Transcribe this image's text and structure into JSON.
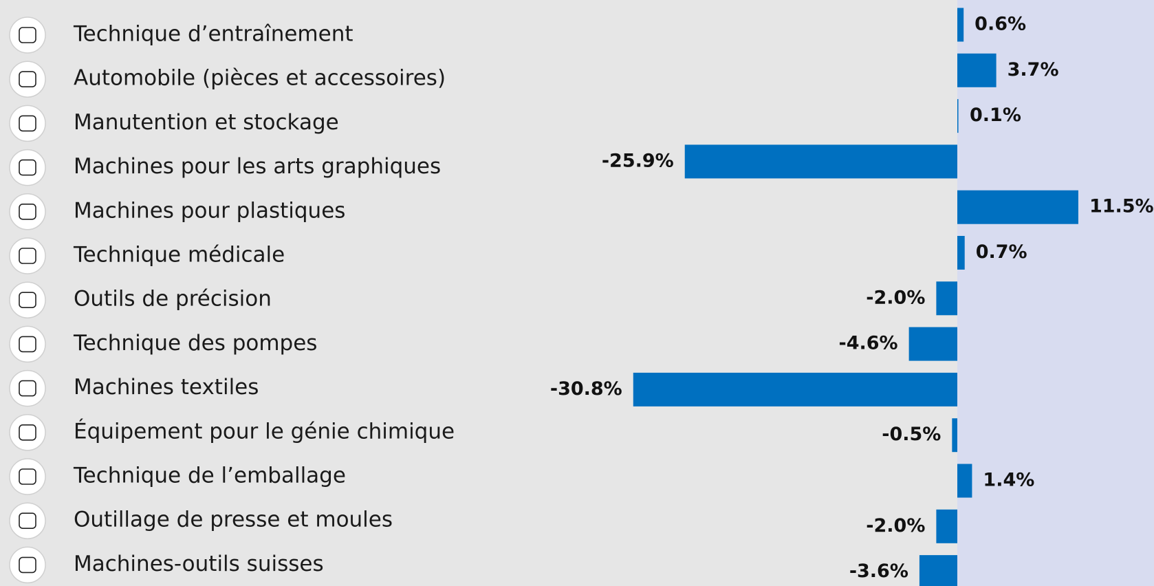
{
  "chart_data": {
    "type": "bar",
    "orientation": "horizontal",
    "color": "#0070c0",
    "categories": [
      "Technique d’entraînement",
      "Automobile (pièces et accessoires)",
      "Manutention et stockage",
      "Machines pour les arts graphiques",
      "Machines pour plastiques",
      "Technique médicale",
      "Outils de précision",
      "Technique des pompes",
      "Machines textiles",
      "Équipement pour le génie chimique",
      "Technique de l’emballage",
      "Outillage de presse et moules",
      "Machines-outils suisses"
    ],
    "values": [
      0.6,
      3.7,
      0.1,
      -25.9,
      11.5,
      0.7,
      -2.0,
      -4.6,
      -30.8,
      -0.5,
      1.4,
      -2.0,
      -3.6
    ],
    "value_labels": [
      "0.6%",
      "3.7%",
      "0.1%",
      "-25.9%",
      "11.5%",
      "0.7%",
      "-2.0%",
      "-4.6%",
      "-30.8%",
      "-0.5%",
      "1.4%",
      "-2.0%",
      "-3.6%"
    ]
  }
}
